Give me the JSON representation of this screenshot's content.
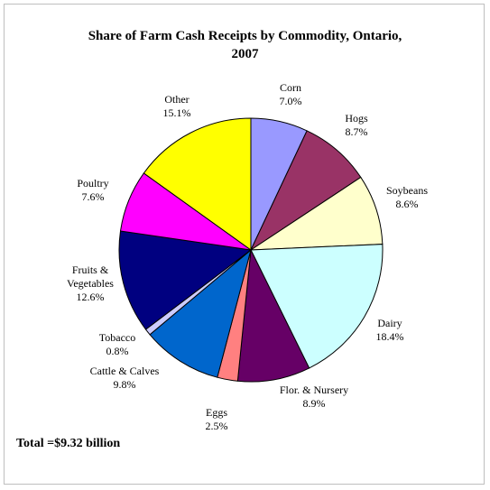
{
  "chart_data": {
    "type": "pie",
    "title": "Share of Farm Cash Receipts by Commodity, Ontario, 2007",
    "title_lines": [
      "Share of Farm Cash Receipts by Commodity, Ontario,",
      "2007"
    ],
    "start": "12 o'clock",
    "direction": "clockwise",
    "slices": [
      {
        "name": "Corn",
        "value": 7.0,
        "label": "7.0%",
        "color": "#9999ff"
      },
      {
        "name": "Hogs",
        "value": 8.7,
        "label": "8.7%",
        "color": "#993366"
      },
      {
        "name": "Soybeans",
        "value": 8.6,
        "label": "8.6%",
        "color": "#ffffcc"
      },
      {
        "name": "Dairy",
        "value": 18.4,
        "label": "18.4%",
        "color": "#ccffff"
      },
      {
        "name": "Flor. & Nursery",
        "value": 8.9,
        "label": "8.9%",
        "color": "#660066"
      },
      {
        "name": "Eggs",
        "value": 2.5,
        "label": "2.5%",
        "color": "#ff8080"
      },
      {
        "name": "Cattle & Calves",
        "value": 9.8,
        "label": "9.8%",
        "color": "#0066cc"
      },
      {
        "name": "Tobacco",
        "value": 0.8,
        "label": "0.8%",
        "color": "#ccccff"
      },
      {
        "name": "Fruits & Vegetables",
        "value": 12.6,
        "label": "12.6%",
        "color": "#000080"
      },
      {
        "name": "Poultry",
        "value": 7.6,
        "label": "7.6%",
        "color": "#ff00ff"
      },
      {
        "name": "Other",
        "value": 15.1,
        "label": "15.1%",
        "color": "#ffff00"
      }
    ],
    "annotation": "Total =$9.32 billion"
  }
}
